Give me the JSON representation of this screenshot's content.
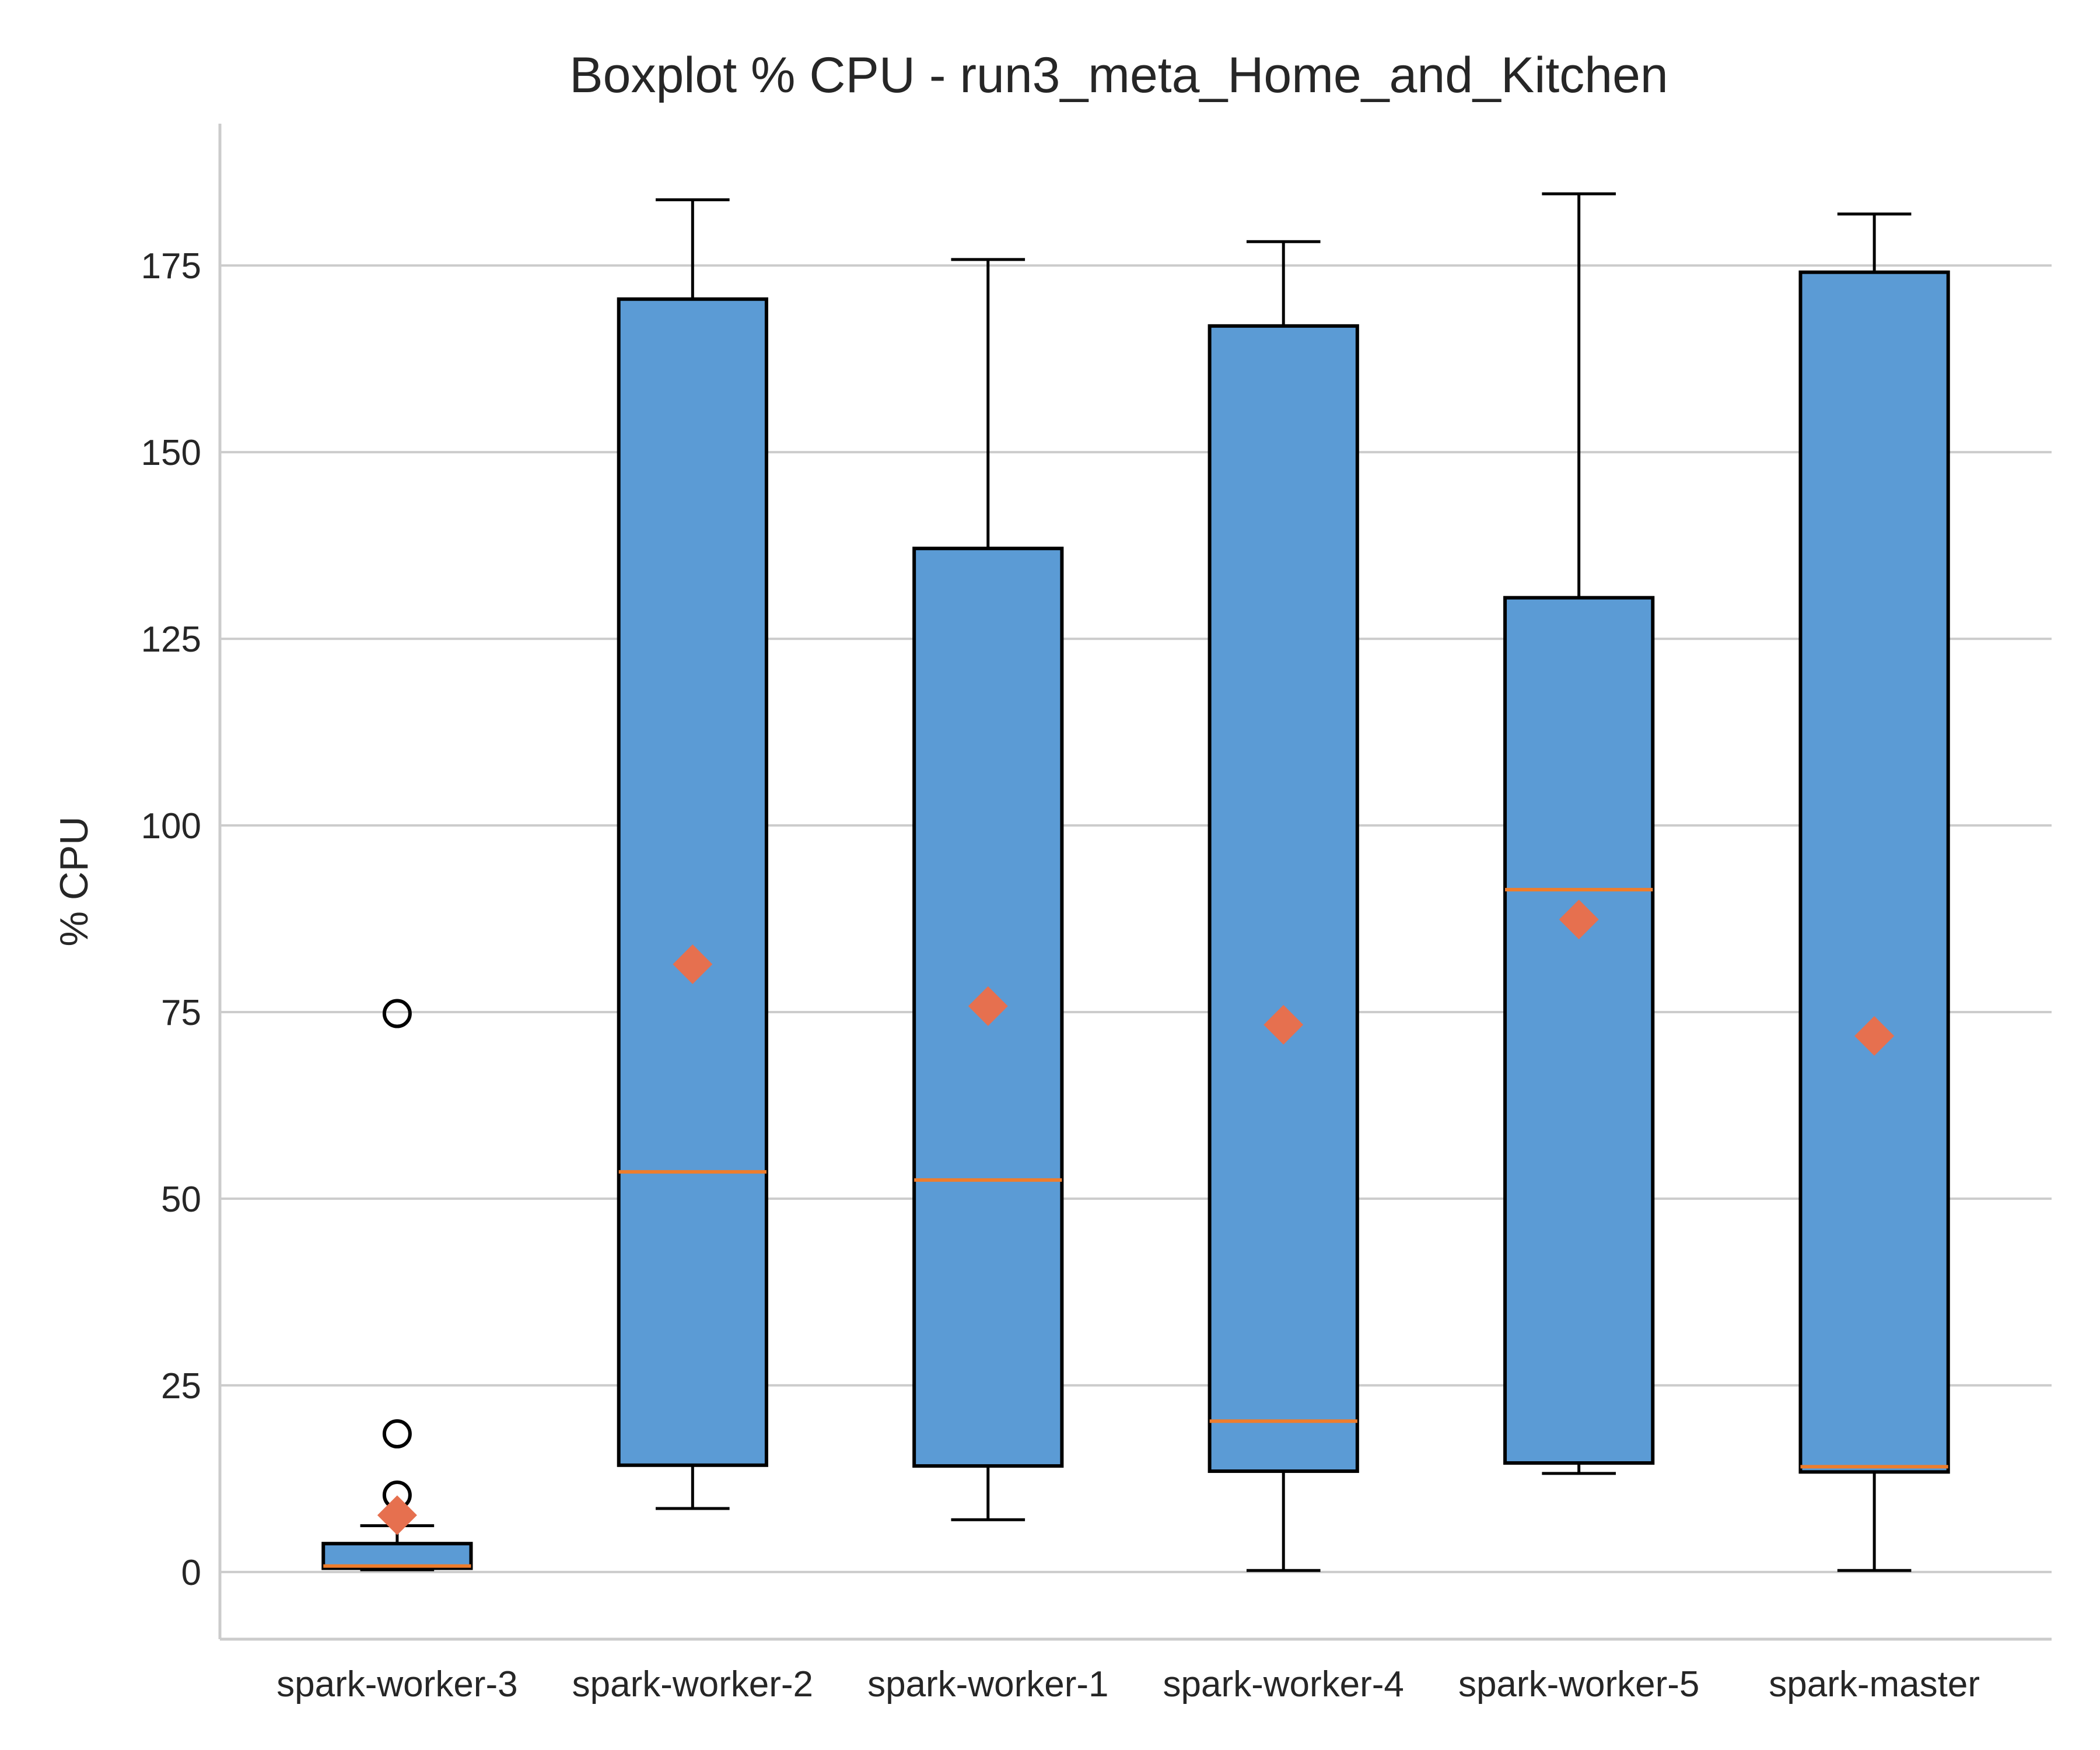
{
  "chart_data": {
    "type": "box",
    "title": "Boxplot % CPU - run3_meta_Home_and_Kitchen",
    "xlabel": "",
    "ylabel": "% CPU",
    "ylim": [
      -9,
      194
    ],
    "yticks": [
      0,
      25,
      50,
      75,
      100,
      125,
      150,
      175
    ],
    "grid": "horizontal",
    "colors": {
      "box_fill": "#5b9bd5",
      "box_edge": "#000000",
      "median": "#ee7d2d",
      "mean": "#e6704f",
      "grid": "#cccccc",
      "axis": "#cccccc"
    },
    "boxes": [
      {
        "name": "spark-worker-3",
        "whislo": 0.3,
        "q1": 0.5,
        "median": 0.8,
        "q3": 3.8,
        "whishi": 6.2,
        "mean": 7.6,
        "fliers": [
          10.3,
          18.5,
          74.8
        ]
      },
      {
        "name": "spark-worker-2",
        "whislo": 8.5,
        "q1": 14.3,
        "median": 53.6,
        "q3": 170.5,
        "whishi": 183.8,
        "mean": 81.4,
        "fliers": []
      },
      {
        "name": "spark-worker-1",
        "whislo": 7.0,
        "q1": 14.2,
        "median": 52.5,
        "q3": 137.1,
        "whishi": 175.8,
        "mean": 75.8,
        "fliers": []
      },
      {
        "name": "spark-worker-4",
        "whislo": 0.2,
        "q1": 13.5,
        "median": 20.2,
        "q3": 166.9,
        "whishi": 178.2,
        "mean": 73.3,
        "fliers": []
      },
      {
        "name": "spark-worker-5",
        "whislo": 13.2,
        "q1": 14.6,
        "median": 91.4,
        "q3": 130.5,
        "whishi": 184.6,
        "mean": 87.4,
        "fliers": []
      },
      {
        "name": "spark-master",
        "whislo": 0.2,
        "q1": 13.4,
        "median": 14.1,
        "q3": 174.1,
        "whishi": 181.9,
        "mean": 71.8,
        "fliers": []
      }
    ]
  }
}
